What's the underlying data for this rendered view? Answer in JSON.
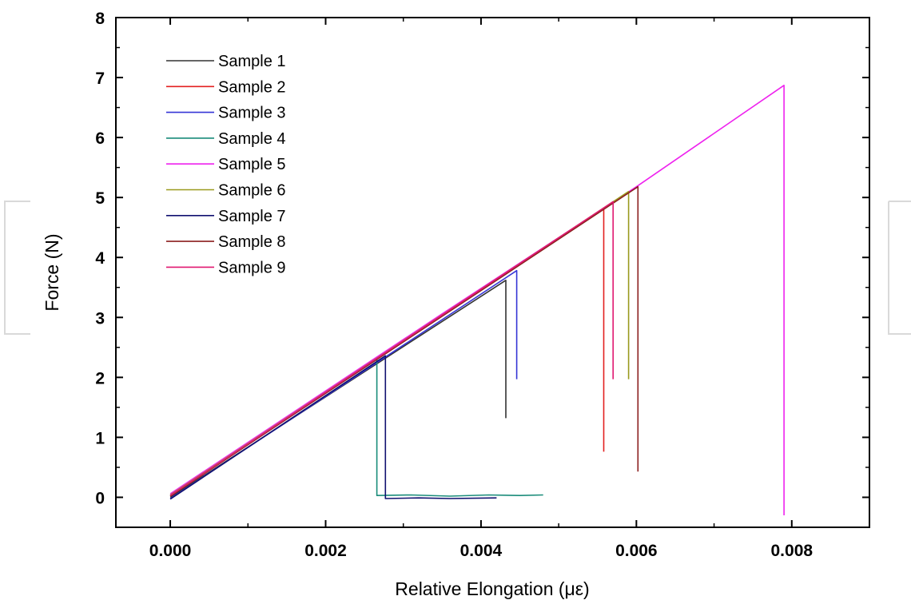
{
  "chart_data": {
    "type": "line",
    "title": "",
    "xlabel": "Relative Elongation (με)",
    "ylabel": "Force (N)",
    "xlim": [
      -0.0007,
      0.009
    ],
    "ylim": [
      -0.5,
      8
    ],
    "xticks": [
      0.0,
      0.002,
      0.004,
      0.006,
      0.008
    ],
    "xtick_labels": [
      "0.000",
      "0.002",
      "0.004",
      "0.006",
      "0.008"
    ],
    "yticks": [
      0,
      1,
      2,
      3,
      4,
      5,
      6,
      7,
      8
    ],
    "ytick_labels": [
      "0",
      "1",
      "2",
      "3",
      "4",
      "5",
      "6",
      "7",
      "8"
    ],
    "grid": false,
    "legend_position": "top-left",
    "series": [
      {
        "name": "Sample 1",
        "color": "#333333",
        "points": [
          [
            0.0,
            0.0
          ],
          [
            0.00432,
            3.62
          ],
          [
            0.00432,
            1.32
          ]
        ]
      },
      {
        "name": "Sample 2",
        "color": "#e32020",
        "points": [
          [
            0.0,
            0.02
          ],
          [
            0.00558,
            4.82
          ],
          [
            0.00558,
            0.76
          ]
        ]
      },
      {
        "name": "Sample 3",
        "color": "#3535d6",
        "points": [
          [
            0.0,
            -0.02
          ],
          [
            0.00446,
            3.78
          ],
          [
            0.00446,
            1.97
          ]
        ]
      },
      {
        "name": "Sample 4",
        "color": "#1a8c7a",
        "points": [
          [
            0.0,
            0.03
          ],
          [
            0.00266,
            2.3
          ],
          [
            0.00266,
            0.03
          ],
          [
            0.0031,
            0.04
          ],
          [
            0.0036,
            0.02
          ],
          [
            0.0041,
            0.04
          ],
          [
            0.0045,
            0.03
          ],
          [
            0.0048,
            0.04
          ]
        ]
      },
      {
        "name": "Sample 5",
        "color": "#ee22ee",
        "points": [
          [
            0.0,
            0.06
          ],
          [
            0.0035,
            3.06
          ],
          [
            0.006,
            5.18
          ],
          [
            0.0079,
            6.87
          ],
          [
            0.0079,
            -0.3
          ]
        ]
      },
      {
        "name": "Sample 6",
        "color": "#9a9a1e",
        "points": [
          [
            0.0,
            0.04
          ],
          [
            0.0059,
            5.1
          ],
          [
            0.0059,
            1.97
          ]
        ]
      },
      {
        "name": "Sample 7",
        "color": "#111170",
        "points": [
          [
            0.0,
            -0.03
          ],
          [
            0.00277,
            2.36
          ],
          [
            0.00277,
            -0.02
          ],
          [
            0.0032,
            -0.01
          ],
          [
            0.0036,
            -0.02
          ],
          [
            0.0042,
            -0.01
          ]
        ]
      },
      {
        "name": "Sample 8",
        "color": "#8b1f1f",
        "points": [
          [
            0.0,
            0.02
          ],
          [
            0.00602,
            5.18
          ],
          [
            0.00602,
            0.43
          ]
        ]
      },
      {
        "name": "Sample 9",
        "color": "#e01870",
        "points": [
          [
            0.0,
            0.03
          ],
          [
            0.0057,
            4.93
          ],
          [
            0.0057,
            1.97
          ]
        ]
      }
    ]
  }
}
